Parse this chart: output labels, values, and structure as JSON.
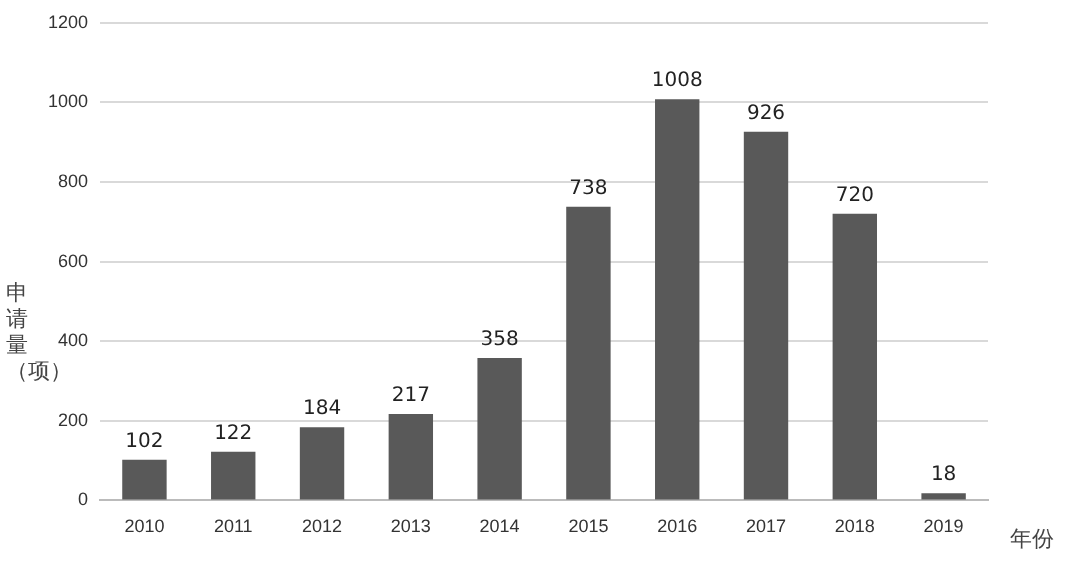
{
  "chart_data": {
    "type": "bar",
    "ylabel": "申请量（项）",
    "xlabel": "年份",
    "categories": [
      "2010",
      "2011",
      "2012",
      "2013",
      "2014",
      "2015",
      "2016",
      "2017",
      "2018",
      "2019"
    ],
    "values": [
      102,
      122,
      184,
      217,
      358,
      738,
      1008,
      926,
      720,
      18
    ],
    "color": "#595959",
    "ylim": [
      0,
      1200
    ],
    "yticks": [
      0,
      200,
      400,
      600,
      800,
      1000,
      1200
    ],
    "grid": "y",
    "data_labels": true,
    "legend": false
  }
}
